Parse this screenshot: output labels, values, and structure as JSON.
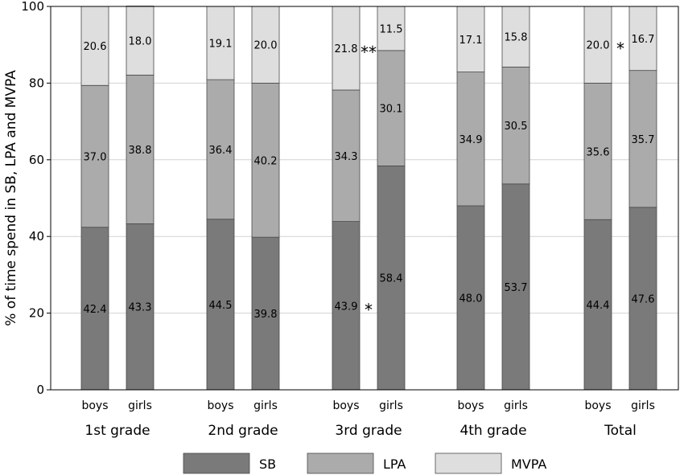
{
  "chart_data": {
    "type": "bar",
    "stacked": true,
    "ylabel": "% of time spend in SB, LPA and MVPA",
    "xlabel": "",
    "ylim": [
      0,
      100
    ],
    "yticks": [
      0,
      20,
      40,
      60,
      80,
      100
    ],
    "grid": "horizontal",
    "legend_position": "bottom",
    "groups": [
      "1st grade",
      "2nd grade",
      "3rd grade",
      "4th grade",
      "Total"
    ],
    "subcategories": [
      "boys",
      "girls"
    ],
    "series": [
      {
        "name": "SB",
        "color": "#7a7a7a",
        "values": [
          42.4,
          43.3,
          44.5,
          39.8,
          43.9,
          58.4,
          48.0,
          53.7,
          44.4,
          47.6
        ]
      },
      {
        "name": "LPA",
        "color": "#ababab",
        "values": [
          37.0,
          38.8,
          36.4,
          40.2,
          34.3,
          30.1,
          34.9,
          30.5,
          35.6,
          35.7
        ]
      },
      {
        "name": "MVPA",
        "color": "#dedede",
        "values": [
          20.6,
          18.0,
          19.1,
          20.0,
          21.8,
          11.5,
          17.1,
          15.8,
          20.0,
          16.7
        ]
      }
    ],
    "value_labels": [
      [
        "42.4",
        "43.3",
        "44.5",
        "39.8",
        "43.9",
        "58.4",
        "48.0",
        "53.7",
        "44.4",
        "47.6"
      ],
      [
        "37.0",
        "38.8",
        "36.4",
        "40.2",
        "34.3",
        "30.1",
        "34.9",
        "30.5",
        "35.6",
        "35.7"
      ],
      [
        "20.6",
        "18.0",
        "19.1",
        "20.0",
        "21.8",
        "11.5",
        "17.1",
        "15.8",
        "20.0",
        "16.7"
      ]
    ],
    "annotations": [
      {
        "text": "**",
        "group": "3rd grade",
        "series": "MVPA"
      },
      {
        "text": "*",
        "group": "3rd grade",
        "series": "SB"
      },
      {
        "text": "*",
        "group": "Total",
        "series": "MVPA"
      }
    ]
  }
}
